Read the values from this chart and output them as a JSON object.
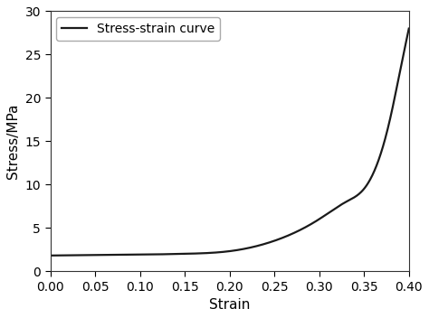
{
  "xlabel": "Strain",
  "ylabel": "Stress/MPa",
  "xlim": [
    0.0,
    0.4
  ],
  "ylim": [
    0,
    30
  ],
  "xticks": [
    0.0,
    0.05,
    0.1,
    0.15,
    0.2,
    0.25,
    0.3,
    0.35,
    0.4
  ],
  "yticks": [
    0,
    5,
    10,
    15,
    20,
    25,
    30
  ],
  "legend_label": "Stress-strain curve",
  "line_color": "#1a1a1a",
  "line_width": 1.6,
  "background_color": "#ffffff",
  "curve_keypoints": {
    "x": [
      0.0,
      0.05,
      0.1,
      0.15,
      0.2,
      0.25,
      0.3,
      0.33,
      0.35,
      0.37,
      0.38,
      0.39,
      0.4
    ],
    "y": [
      1.8,
      1.85,
      1.9,
      2.0,
      2.3,
      3.5,
      6.0,
      8.0,
      9.5,
      14.0,
      18.0,
      23.0,
      28.0
    ]
  }
}
